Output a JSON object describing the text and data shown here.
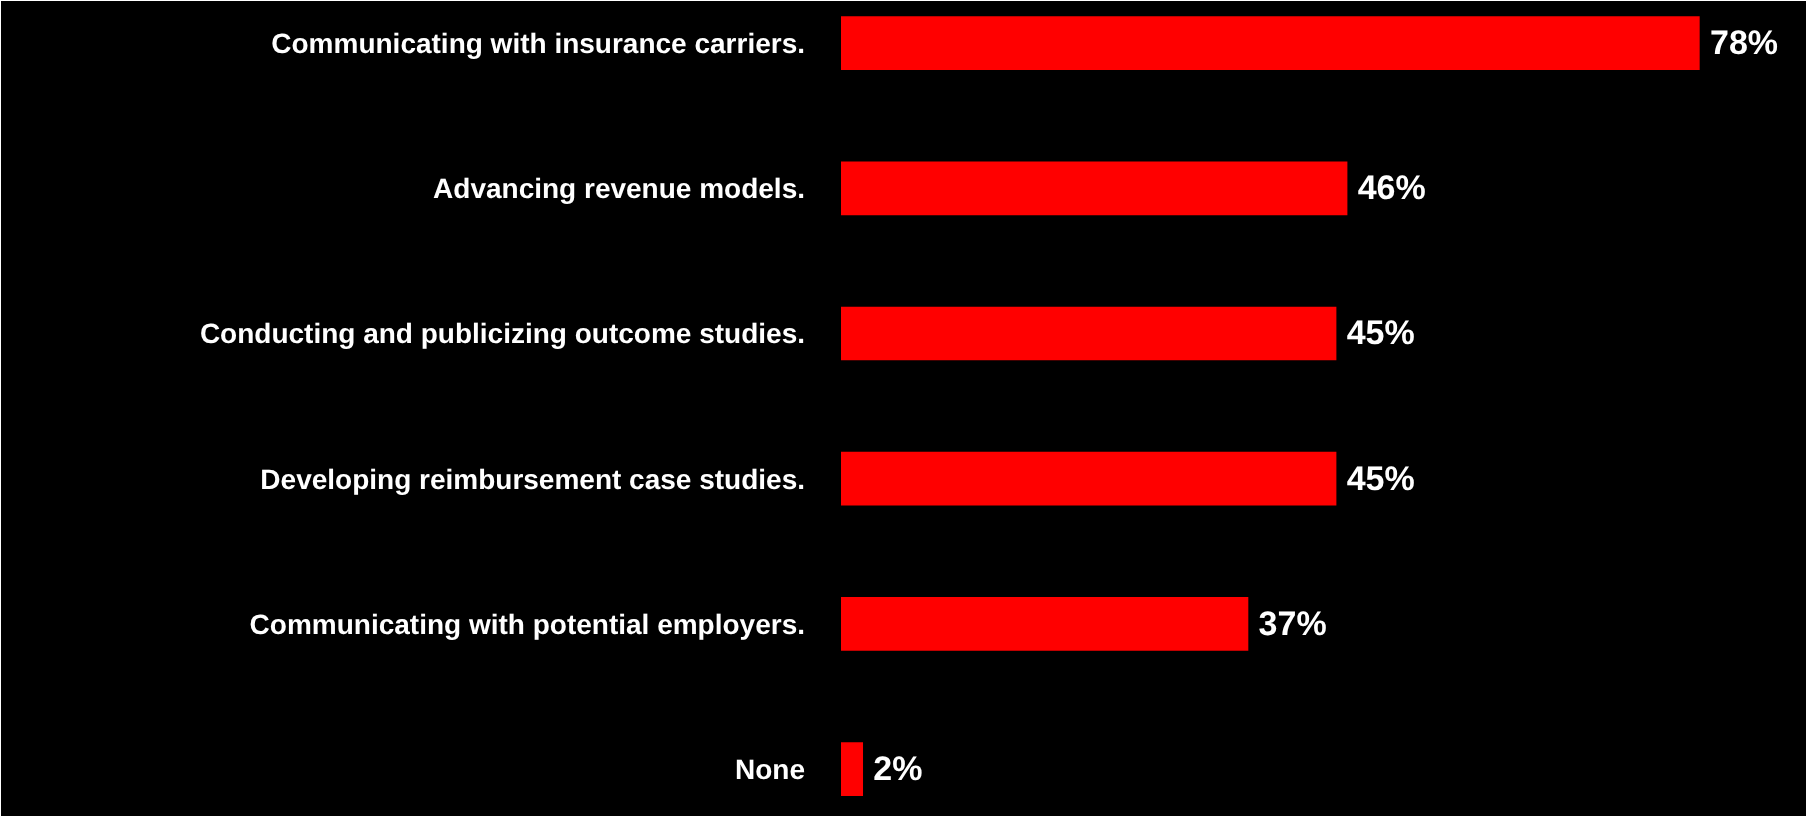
{
  "chart_data": {
    "type": "bar",
    "orientation": "horizontal",
    "categories": [
      "Communicating with insurance carriers.",
      "Advancing revenue models.",
      "Conducting and publicizing outcome studies.",
      "Developing reimbursement case studies.",
      "Communicating with potential employers.",
      "None"
    ],
    "values": [
      78,
      46,
      45,
      45,
      37,
      2
    ],
    "value_labels": [
      "78%",
      "46%",
      "45%",
      "45%",
      "37%",
      "2%"
    ],
    "color": "#ff0000"
  }
}
